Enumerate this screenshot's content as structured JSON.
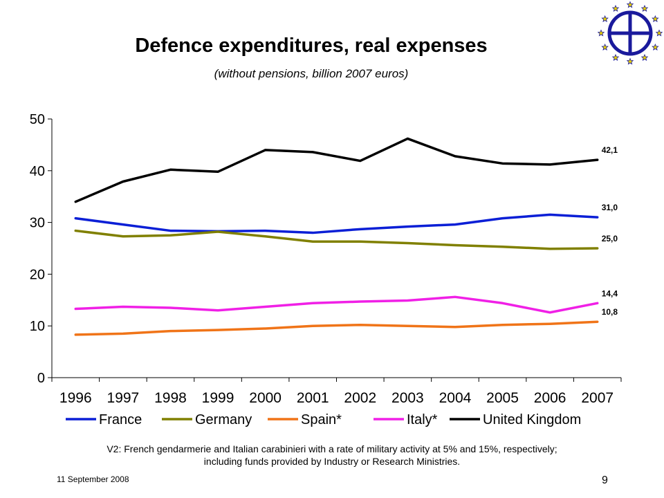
{
  "header": {
    "title": "Defence expenditures, real expenses",
    "subtitle": "(without pensions, billion 2007 euros)"
  },
  "chart_data": {
    "type": "line",
    "title": "Defence expenditures, real expenses",
    "subtitle": "(without pensions, billion 2007 euros)",
    "xlabel": "",
    "ylabel": "",
    "categories": [
      "1996",
      "1997",
      "1998",
      "1999",
      "2000",
      "2001",
      "2002",
      "2003",
      "2004",
      "2005",
      "2006",
      "2007"
    ],
    "ylim": [
      0,
      50
    ],
    "yticks": [
      0,
      10,
      20,
      30,
      40,
      50
    ],
    "grid": false,
    "legend": "bottom",
    "series": [
      {
        "name": "France",
        "color": "#0b1fd6",
        "values": [
          30.8,
          29.6,
          28.4,
          28.3,
          28.4,
          28.0,
          28.7,
          29.2,
          29.6,
          30.8,
          31.5,
          31.0
        ],
        "end_label": "31,0"
      },
      {
        "name": "Germany",
        "color": "#808000",
        "values": [
          28.4,
          27.3,
          27.5,
          28.2,
          27.3,
          26.3,
          26.3,
          26.0,
          25.6,
          25.3,
          24.9,
          25.0
        ],
        "end_label": "25,0"
      },
      {
        "name": "Spain*",
        "color": "#f07418",
        "values": [
          8.3,
          8.5,
          9.0,
          9.2,
          9.5,
          10.0,
          10.2,
          10.0,
          9.8,
          10.2,
          10.4,
          10.8
        ],
        "end_label": "10,8"
      },
      {
        "name": "Italy*",
        "color": "#f020e6",
        "values": [
          13.3,
          13.7,
          13.5,
          13.0,
          13.7,
          14.4,
          14.7,
          14.9,
          15.6,
          14.4,
          12.6,
          14.4
        ],
        "end_label": "14,4"
      },
      {
        "name": "United Kingdom",
        "color": "#000000",
        "values": [
          34.0,
          37.9,
          40.2,
          39.8,
          44.0,
          43.6,
          41.9,
          46.2,
          42.8,
          41.4,
          41.2,
          42.1
        ],
        "end_label": "42,1"
      }
    ]
  },
  "footer": {
    "note_line1": "V2: French gendarmerie and Italian carabinieri with a rate of military activity at 5% and 15%, respectively;",
    "note_line2": "including funds provided by Industry or Research Ministries.",
    "date": "11 September 2008",
    "page_number": "9"
  }
}
